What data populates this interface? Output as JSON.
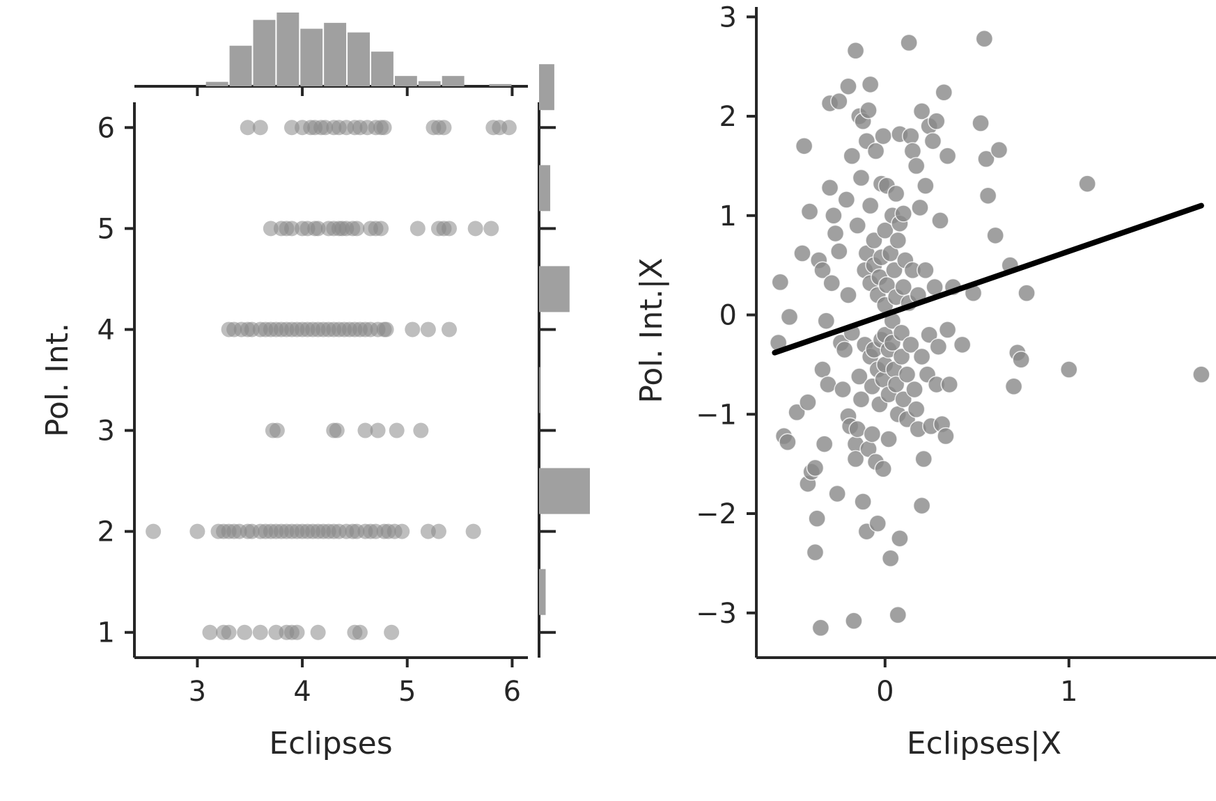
{
  "chart_data": [
    {
      "type": "scatter",
      "panel": "joint",
      "xlabel": "Eclipses",
      "ylabel": "Pol. Int.",
      "xlim": [
        2.4,
        6.15
      ],
      "ylim": [
        0.75,
        6.25
      ],
      "xticks": [
        "3",
        "4",
        "5",
        "6"
      ],
      "yticks": [
        "1",
        "2",
        "3",
        "4",
        "5",
        "6"
      ],
      "point_color": "#888888",
      "point_opacity": 0.55,
      "points_by_level": {
        "6": [
          3.48,
          3.6,
          3.9,
          4.0,
          4.08,
          4.12,
          4.18,
          4.22,
          4.3,
          4.35,
          4.42,
          4.5,
          4.55,
          4.62,
          4.7,
          4.75,
          4.78,
          5.25,
          5.3,
          5.35,
          5.82,
          5.88,
          5.97
        ],
        "5": [
          3.7,
          3.8,
          3.85,
          3.9,
          4.0,
          4.05,
          4.12,
          4.15,
          4.25,
          4.3,
          4.35,
          4.38,
          4.42,
          4.48,
          4.52,
          4.65,
          4.7,
          4.75,
          5.1,
          5.3,
          5.35,
          5.4,
          5.65,
          5.8
        ],
        "4": [
          3.3,
          3.35,
          3.42,
          3.48,
          3.52,
          3.6,
          3.65,
          3.7,
          3.75,
          3.8,
          3.85,
          3.9,
          3.95,
          4.0,
          4.05,
          4.1,
          4.15,
          4.2,
          4.25,
          4.3,
          4.35,
          4.4,
          4.45,
          4.5,
          4.55,
          4.6,
          4.65,
          4.72,
          4.78,
          4.8,
          5.05,
          5.2,
          5.4
        ],
        "3": [
          3.72,
          3.76,
          4.3,
          4.33,
          4.6,
          4.72,
          4.9,
          5.13
        ],
        "2": [
          2.58,
          3.0,
          3.2,
          3.25,
          3.3,
          3.35,
          3.4,
          3.48,
          3.52,
          3.6,
          3.65,
          3.7,
          3.75,
          3.8,
          3.85,
          3.9,
          3.95,
          4.0,
          4.05,
          4.1,
          4.15,
          4.2,
          4.25,
          4.3,
          4.35,
          4.42,
          4.48,
          4.52,
          4.6,
          4.65,
          4.7,
          4.78,
          4.82,
          4.88,
          4.95,
          5.2,
          5.3,
          5.63
        ],
        "1": [
          3.12,
          3.25,
          3.3,
          3.45,
          3.6,
          3.75,
          3.85,
          3.9,
          3.95,
          4.15,
          4.5,
          4.55,
          4.85
        ]
      },
      "marginal_x": {
        "type": "bar",
        "bin_edges": [
          2.4,
          2.625,
          2.85,
          3.075,
          3.3,
          3.525,
          3.75,
          3.975,
          4.2,
          4.425,
          4.65,
          4.875,
          5.1,
          5.325,
          5.55,
          5.775,
          6.0
        ],
        "heights": [
          0,
          0,
          0,
          0.06,
          0.55,
          0.9,
          1.0,
          0.78,
          0.86,
          0.73,
          0.47,
          0.14,
          0.07,
          0.14,
          0,
          0.03
        ],
        "color": "#a0a0a0"
      },
      "marginal_y": {
        "type": "bar",
        "levels": [
          1,
          2,
          3,
          4,
          5,
          6
        ],
        "widths": [
          0.13,
          1.0,
          0.02,
          0.6,
          0.22,
          0.3
        ],
        "color": "#a0a0a0"
      }
    },
    {
      "type": "scatter",
      "panel": "partial-regression",
      "xlabel": "Eclipses|X",
      "ylabel": "Pol. Int.|X",
      "xlim": [
        -0.7,
        1.8
      ],
      "ylim": [
        -3.45,
        3.1
      ],
      "xticks": [
        "0",
        "1"
      ],
      "yticks": [
        "3",
        "2",
        "1",
        "0",
        "−1",
        "−2",
        "−3"
      ],
      "point_color": "#888888",
      "fit_line": {
        "x": [
          -0.6,
          1.72
        ],
        "y": [
          -0.38,
          1.1
        ],
        "color": "#000000"
      },
      "points": [
        [
          -0.57,
          0.33
        ],
        [
          -0.58,
          -0.28
        ],
        [
          -0.52,
          -0.02
        ],
        [
          -0.55,
          -1.22
        ],
        [
          -0.53,
          -1.28
        ],
        [
          -0.48,
          -0.98
        ],
        [
          -0.45,
          0.62
        ],
        [
          -0.44,
          1.7
        ],
        [
          -0.42,
          -0.88
        ],
        [
          -0.41,
          1.04
        ],
        [
          -0.42,
          -1.7
        ],
        [
          -0.4,
          -1.58
        ],
        [
          -0.38,
          -1.54
        ],
        [
          -0.37,
          -2.05
        ],
        [
          -0.38,
          -2.39
        ],
        [
          -0.35,
          -3.15
        ],
        [
          -0.36,
          0.55
        ],
        [
          -0.34,
          0.45
        ],
        [
          -0.34,
          -0.55
        ],
        [
          -0.33,
          -1.3
        ],
        [
          -0.32,
          -0.06
        ],
        [
          -0.31,
          -0.7
        ],
        [
          -0.3,
          1.28
        ],
        [
          -0.3,
          2.13
        ],
        [
          -0.29,
          0.32
        ],
        [
          -0.28,
          1.0
        ],
        [
          -0.27,
          0.82
        ],
        [
          -0.26,
          -1.8
        ],
        [
          -0.25,
          0.64
        ],
        [
          -0.25,
          2.15
        ],
        [
          -0.24,
          -0.28
        ],
        [
          -0.23,
          -0.75
        ],
        [
          -0.22,
          -0.35
        ],
        [
          -0.21,
          1.16
        ],
        [
          -0.2,
          0.2
        ],
        [
          -0.2,
          -1.02
        ],
        [
          -0.2,
          2.3
        ],
        [
          -0.19,
          -1.12
        ],
        [
          -0.18,
          -0.18
        ],
        [
          -0.18,
          1.6
        ],
        [
          -0.17,
          -3.08
        ],
        [
          -0.16,
          -1.3
        ],
        [
          -0.16,
          -1.45
        ],
        [
          -0.16,
          2.66
        ],
        [
          -0.15,
          -1.15
        ],
        [
          -0.15,
          0.9
        ],
        [
          -0.14,
          2.0
        ],
        [
          -0.14,
          -0.62
        ],
        [
          -0.13,
          -0.85
        ],
        [
          -0.13,
          1.38
        ],
        [
          -0.12,
          1.95
        ],
        [
          -0.12,
          -1.88
        ],
        [
          -0.11,
          -0.3
        ],
        [
          -0.11,
          0.45
        ],
        [
          -0.1,
          -2.18
        ],
        [
          -0.1,
          0.62
        ],
        [
          -0.1,
          1.75
        ],
        [
          -0.09,
          -1.35
        ],
        [
          -0.09,
          2.06
        ],
        [
          -0.08,
          0.32
        ],
        [
          -0.08,
          -0.42
        ],
        [
          -0.08,
          1.1
        ],
        [
          -0.08,
          2.32
        ],
        [
          -0.07,
          -0.72
        ],
        [
          -0.07,
          -1.2
        ],
        [
          -0.06,
          0.5
        ],
        [
          -0.06,
          -0.35
        ],
        [
          -0.06,
          0.75
        ],
        [
          -0.05,
          1.65
        ],
        [
          -0.05,
          -1.48
        ],
        [
          -0.04,
          -0.55
        ],
        [
          -0.04,
          0.2
        ],
        [
          -0.04,
          -2.1
        ],
        [
          -0.03,
          -0.9
        ],
        [
          -0.03,
          0.38
        ],
        [
          -0.02,
          1.32
        ],
        [
          -0.02,
          -0.25
        ],
        [
          -0.02,
          0.58
        ],
        [
          -0.01,
          -1.55
        ],
        [
          -0.01,
          -0.65
        ],
        [
          -0.01,
          1.8
        ],
        [
          0.0,
          0.1
        ],
        [
          0.0,
          -0.5
        ],
        [
          0.0,
          0.85
        ],
        [
          0.0,
          -0.2
        ],
        [
          0.01,
          1.3
        ],
        [
          0.01,
          0.3
        ],
        [
          0.02,
          -0.8
        ],
        [
          0.02,
          -1.25
        ],
        [
          0.02,
          -0.35
        ],
        [
          0.03,
          0.62
        ],
        [
          0.03,
          -2.45
        ],
        [
          0.04,
          1.0
        ],
        [
          0.04,
          -0.28
        ],
        [
          0.04,
          -0.06
        ],
        [
          0.05,
          0.45
        ],
        [
          0.05,
          -0.55
        ],
        [
          0.06,
          1.22
        ],
        [
          0.06,
          -0.7
        ],
        [
          0.06,
          0.18
        ],
        [
          0.07,
          -1.0
        ],
        [
          0.07,
          -3.02
        ],
        [
          0.07,
          0.75
        ],
        [
          0.08,
          -2.25
        ],
        [
          0.08,
          0.92
        ],
        [
          0.08,
          1.82
        ],
        [
          0.09,
          -0.18
        ],
        [
          0.09,
          -0.42
        ],
        [
          0.1,
          0.28
        ],
        [
          0.1,
          -0.85
        ],
        [
          0.1,
          1.02
        ],
        [
          0.11,
          0.55
        ],
        [
          0.12,
          -0.6
        ],
        [
          0.12,
          -1.05
        ],
        [
          0.13,
          2.74
        ],
        [
          0.13,
          0.12
        ],
        [
          0.14,
          1.8
        ],
        [
          0.14,
          -0.3
        ],
        [
          0.15,
          1.65
        ],
        [
          0.15,
          0.45
        ],
        [
          0.16,
          -0.75
        ],
        [
          0.17,
          1.5
        ],
        [
          0.17,
          -0.95
        ],
        [
          0.18,
          0.2
        ],
        [
          0.18,
          -1.15
        ],
        [
          0.19,
          1.08
        ],
        [
          0.2,
          -0.42
        ],
        [
          0.2,
          2.05
        ],
        [
          0.2,
          -1.92
        ],
        [
          0.21,
          -1.45
        ],
        [
          0.22,
          0.45
        ],
        [
          0.22,
          1.3
        ],
        [
          0.23,
          -0.6
        ],
        [
          0.24,
          1.9
        ],
        [
          0.24,
          -0.2
        ],
        [
          0.25,
          -1.12
        ],
        [
          0.26,
          1.75
        ],
        [
          0.27,
          0.28
        ],
        [
          0.28,
          -0.7
        ],
        [
          0.28,
          1.95
        ],
        [
          0.29,
          -0.32
        ],
        [
          0.3,
          0.95
        ],
        [
          0.31,
          -1.1
        ],
        [
          0.32,
          2.24
        ],
        [
          0.33,
          -1.22
        ],
        [
          0.34,
          1.6
        ],
        [
          0.34,
          -0.15
        ],
        [
          0.35,
          -0.7
        ],
        [
          0.37,
          0.28
        ],
        [
          0.42,
          -0.3
        ],
        [
          0.48,
          0.22
        ],
        [
          0.52,
          1.93
        ],
        [
          0.54,
          2.78
        ],
        [
          0.55,
          1.57
        ],
        [
          0.56,
          1.2
        ],
        [
          0.6,
          0.8
        ],
        [
          0.62,
          1.66
        ],
        [
          0.68,
          0.5
        ],
        [
          0.7,
          -0.72
        ],
        [
          0.72,
          -0.38
        ],
        [
          0.74,
          -0.45
        ],
        [
          0.77,
          0.22
        ],
        [
          1.0,
          -0.55
        ],
        [
          1.1,
          1.32
        ],
        [
          1.72,
          -0.6
        ]
      ]
    }
  ]
}
